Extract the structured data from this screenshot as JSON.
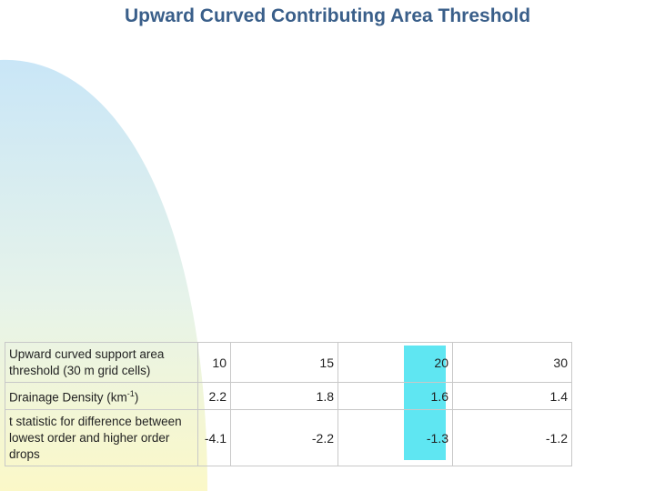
{
  "title": "Upward Curved Contributing Area Threshold",
  "table": {
    "rows": [
      {
        "label": "Upward curved support area threshold (30 m grid cells)",
        "values": [
          "10",
          "15",
          "20",
          "30"
        ]
      },
      {
        "label_main": "Drainage Density (km",
        "label_sup": "-1",
        "label_end": ")",
        "values": [
          "2.2",
          "1.8",
          "1.6",
          "1.4"
        ]
      },
      {
        "label": "t statistic for difference between lowest order and higher order drops",
        "values": [
          "-4.1",
          "-2.2",
          "-1.3",
          "-1.2"
        ]
      }
    ],
    "highlight_column_index": 2
  },
  "colors": {
    "title": "#3a5f8a",
    "highlight": "#5fe6f2",
    "decor_top": "#c9e6f7",
    "decor_bottom": "#fbf8c8"
  }
}
